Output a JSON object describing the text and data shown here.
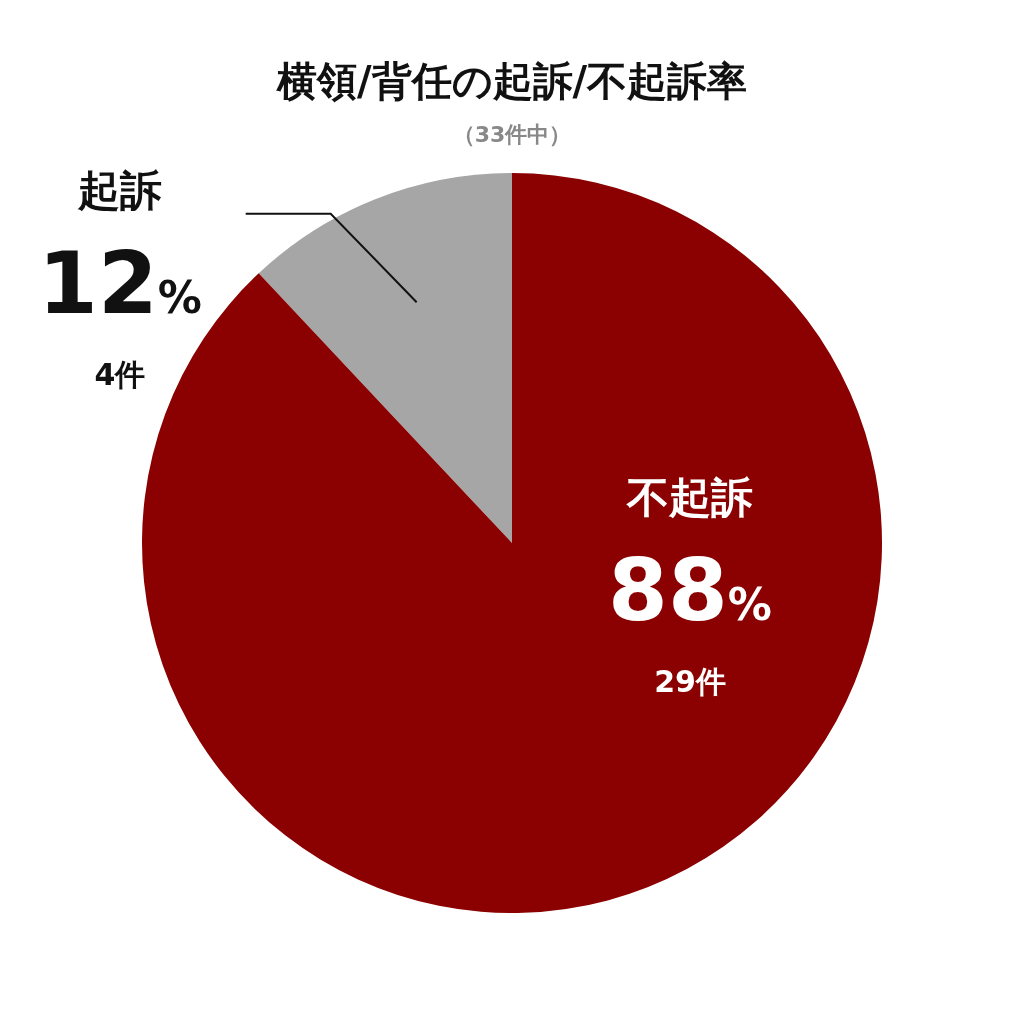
{
  "chart_data": {
    "type": "pie",
    "title": "横領/背任の起訴/不起訴率",
    "subtitle": "（33件中）",
    "categories": [
      "起訴",
      "不起訴"
    ],
    "values": [
      12,
      88
    ],
    "colors": [
      "#a6a6a6",
      "#8b0000"
    ],
    "value_labels": [
      "12%",
      "88%"
    ],
    "annotations": [
      "4件",
      "29件"
    ],
    "legend": false
  }
}
